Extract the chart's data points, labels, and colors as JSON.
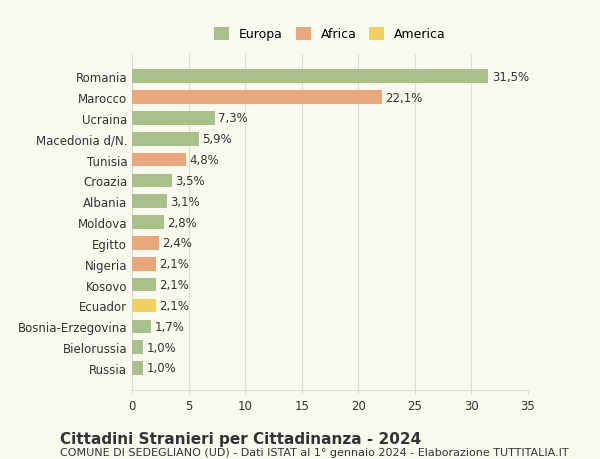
{
  "categories": [
    "Romania",
    "Marocco",
    "Ucraina",
    "Macedonia d/N.",
    "Tunisia",
    "Croazia",
    "Albania",
    "Moldova",
    "Egitto",
    "Nigeria",
    "Kosovo",
    "Ecuador",
    "Bosnia-Erzegovina",
    "Bielorussia",
    "Russia"
  ],
  "values": [
    31.5,
    22.1,
    7.3,
    5.9,
    4.8,
    3.5,
    3.1,
    2.8,
    2.4,
    2.1,
    2.1,
    2.1,
    1.7,
    1.0,
    1.0
  ],
  "labels": [
    "31,5%",
    "22,1%",
    "7,3%",
    "5,9%",
    "4,8%",
    "3,5%",
    "3,1%",
    "2,8%",
    "2,4%",
    "2,1%",
    "2,1%",
    "2,1%",
    "1,7%",
    "1,0%",
    "1,0%"
  ],
  "continents": [
    "Europa",
    "Africa",
    "Europa",
    "Europa",
    "Africa",
    "Europa",
    "Europa",
    "Europa",
    "Africa",
    "Africa",
    "Europa",
    "America",
    "Europa",
    "Europa",
    "Europa"
  ],
  "colors": {
    "Europa": "#a8c08a",
    "Africa": "#e8a87c",
    "America": "#f0d060"
  },
  "legend": [
    "Europa",
    "Africa",
    "America"
  ],
  "legend_colors": [
    "#a8c08a",
    "#e8a87c",
    "#f0d060"
  ],
  "title": "Cittadini Stranieri per Cittadinanza - 2024",
  "subtitle": "COMUNE DI SEDEGLIANO (UD) - Dati ISTAT al 1° gennaio 2024 - Elaborazione TUTTITALIA.IT",
  "xlim": [
    0,
    35
  ],
  "xticks": [
    0,
    5,
    10,
    15,
    20,
    25,
    30,
    35
  ],
  "background_color": "#f9f9f0",
  "plot_bg_color": "#f9f9f0",
  "grid_color": "#ddddcc",
  "bar_height": 0.65,
  "text_color": "#333333",
  "title_fontsize": 11,
  "subtitle_fontsize": 8,
  "label_fontsize": 8.5,
  "tick_fontsize": 8.5,
  "value_fontsize": 8.5
}
